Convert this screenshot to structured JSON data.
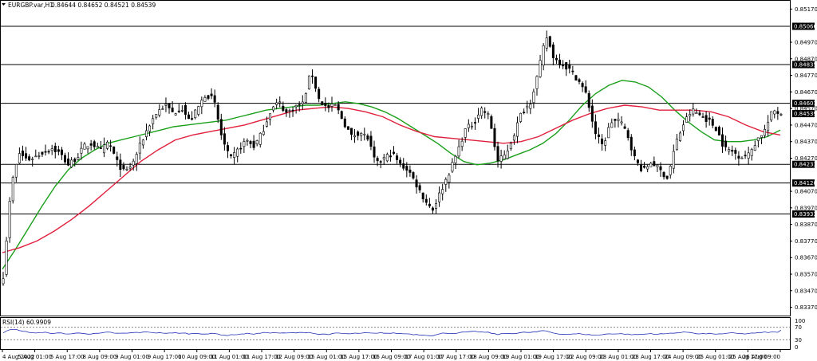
{
  "header": {
    "symbol": "EURGBP.var,H1",
    "ohlc": "0.84644 0.84652 0.84521 0.84539"
  },
  "rsi_panel": {
    "label": "RSI(14) 60.9909",
    "ticks": [
      "100",
      "70",
      "30",
      "0"
    ]
  },
  "chart_data": {
    "type": "line",
    "symbol": "EURGBP.var",
    "timeframe": "H1",
    "ylim": [
      0.8332,
      0.8522
    ],
    "y_ticks": [
      0.8517,
      0.8497,
      0.8487,
      0.8477,
      0.8467,
      0.8457,
      0.8447,
      0.8437,
      0.8427,
      0.8407,
      0.8397,
      0.8387,
      0.8377,
      0.8367,
      0.8357,
      0.8347,
      0.8337
    ],
    "x_ticks": [
      "4 Aug 2022",
      "5 Aug 01:00",
      "5 Aug 17:00",
      "8 Aug 09:00",
      "9 Aug 01:00",
      "9 Aug 17:00",
      "10 Aug 09:00",
      "11 Aug 01:00",
      "11 Aug 17:00",
      "12 Aug 09:00",
      "15 Aug 01:00",
      "15 Aug 17:00",
      "16 Aug 09:00",
      "17 Aug 01:00",
      "17 Aug 17:00",
      "18 Aug 09:00",
      "19 Aug 01:00",
      "19 Aug 17:00",
      "22 Aug 09:00",
      "23 Aug 01:00",
      "23 Aug 17:00",
      "24 Aug 09:00",
      "25 Aug 01:00",
      "25 Aug 17:00",
      "26 Aug 09:00"
    ],
    "levels": [
      {
        "label": "0.85066",
        "value": 0.85066
      },
      {
        "label": "0.84835",
        "value": 0.84835
      },
      {
        "label": "0.84601",
        "value": 0.84601
      },
      {
        "label": "0.84233",
        "value": 0.84233
      },
      {
        "label": "0.84120",
        "value": 0.8412
      },
      {
        "label": "0.83933",
        "value": 0.83933
      }
    ],
    "current_price": {
      "label": "0.84539",
      "value": 0.84539
    },
    "price_closes": [
      0.8356,
      0.8411,
      0.843,
      0.8426,
      0.8428,
      0.8431,
      0.8433,
      0.843,
      0.8423,
      0.8427,
      0.8434,
      0.8436,
      0.8431,
      0.8437,
      0.8425,
      0.8418,
      0.8424,
      0.8436,
      0.8447,
      0.8455,
      0.8459,
      0.8454,
      0.8458,
      0.8449,
      0.8457,
      0.8466,
      0.8462,
      0.8439,
      0.8426,
      0.8432,
      0.8438,
      0.8434,
      0.8443,
      0.8456,
      0.8461,
      0.8454,
      0.8458,
      0.846,
      0.848,
      0.8462,
      0.8457,
      0.8459,
      0.8449,
      0.844,
      0.8443,
      0.8439,
      0.8423,
      0.8427,
      0.843,
      0.8423,
      0.842,
      0.8411,
      0.8402,
      0.8396,
      0.8407,
      0.8418,
      0.843,
      0.8444,
      0.8448,
      0.8457,
      0.8452,
      0.8425,
      0.8429,
      0.8441,
      0.8455,
      0.846,
      0.8478,
      0.8501,
      0.8487,
      0.8484,
      0.848,
      0.8474,
      0.8465,
      0.8443,
      0.8434,
      0.8449,
      0.845,
      0.8442,
      0.8426,
      0.8419,
      0.8425,
      0.842,
      0.8415,
      0.8436,
      0.8448,
      0.8456,
      0.8453,
      0.845,
      0.8445,
      0.8433,
      0.8431,
      0.8428,
      0.8429,
      0.8438,
      0.8444,
      0.8456,
      0.8454
    ],
    "series": [
      {
        "name": "",
        "color": "#1a9f1a",
        "values": [
          0.836,
          0.8372,
          0.8385,
          0.8398,
          0.841,
          0.842,
          0.8427,
          0.8432,
          0.8436,
          0.8438,
          0.844,
          0.8442,
          0.8444,
          0.8446,
          0.8447,
          0.8448,
          0.8449,
          0.845,
          0.8452,
          0.8454,
          0.8456,
          0.8457,
          0.8458,
          0.8459,
          0.8459,
          0.846,
          0.8461,
          0.846,
          0.8458,
          0.8455,
          0.8451,
          0.8446,
          0.8441,
          0.8436,
          0.843,
          0.8425,
          0.8423,
          0.8424,
          0.8426,
          0.8429,
          0.8432,
          0.8436,
          0.8442,
          0.845,
          0.8459,
          0.8466,
          0.8471,
          0.8474,
          0.8473,
          0.847,
          0.8464,
          0.8456,
          0.8449,
          0.8443,
          0.8438,
          0.8437,
          0.8437,
          0.8438,
          0.844,
          0.8444
        ]
      },
      {
        "name": "",
        "color": "#e0203c",
        "values": [
          0.837,
          0.8373,
          0.8377,
          0.8383,
          0.839,
          0.8398,
          0.8407,
          0.8416,
          0.8425,
          0.8432,
          0.8438,
          0.8441,
          0.8443,
          0.8445,
          0.8447,
          0.845,
          0.8453,
          0.8456,
          0.8457,
          0.8458,
          0.8457,
          0.8455,
          0.8452,
          0.8447,
          0.8443,
          0.844,
          0.8439,
          0.8438,
          0.8437,
          0.8436,
          0.8437,
          0.844,
          0.8445,
          0.845,
          0.8454,
          0.8457,
          0.8459,
          0.8458,
          0.8456,
          0.8456,
          0.8456,
          0.8455,
          0.8452,
          0.8447,
          0.8443,
          0.8441
        ]
      }
    ],
    "rsi": {
      "name": "RSI(14)",
      "value": 60.9909,
      "color": "#1e2fb4",
      "ylim": [
        0,
        100
      ],
      "levels": [
        70,
        30
      ]
    },
    "grid": false
  }
}
